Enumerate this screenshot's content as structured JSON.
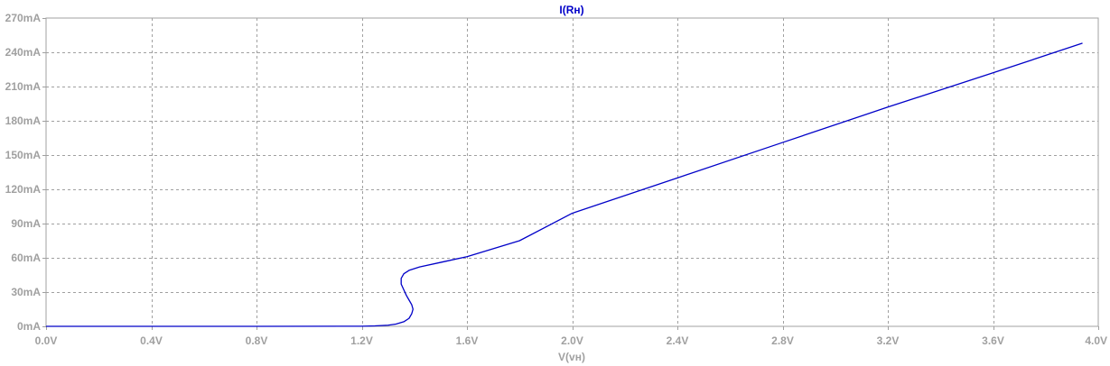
{
  "chart_data": {
    "type": "line",
    "title": "I(Rн)",
    "subtitle": "",
    "xlabel": "V(vн)",
    "ylabel": "",
    "xlim": [
      0,
      4.0
    ],
    "ylim": [
      0,
      270
    ],
    "x_unit": "V",
    "y_unit": "mA",
    "grid": true,
    "legend": "none",
    "x_ticks": [
      "0.0V",
      "0.4V",
      "0.8V",
      "1.2V",
      "1.6V",
      "2.0V",
      "2.4V",
      "2.8V",
      "3.2V",
      "3.6V",
      "4.0V"
    ],
    "y_ticks": [
      "0mA",
      "30mA",
      "60mA",
      "90mA",
      "120mA",
      "150mA",
      "180mA",
      "210mA",
      "240mA",
      "270mA"
    ],
    "x_tick_values": [
      0,
      0.4,
      0.8,
      1.2,
      1.6,
      2.0,
      2.4,
      2.8,
      3.2,
      3.6,
      4.0
    ],
    "y_tick_values": [
      0,
      30,
      60,
      90,
      120,
      150,
      180,
      210,
      240,
      270
    ],
    "series": [
      {
        "color": "#0000c8",
        "x": [
          0.0,
          0.4,
          0.8,
          1.2,
          1.25,
          1.3,
          1.33,
          1.36,
          1.38,
          1.39,
          1.395,
          1.39,
          1.38,
          1.37,
          1.36,
          1.35,
          1.35,
          1.36,
          1.38,
          1.42,
          1.5,
          1.6,
          1.8,
          2.0,
          2.4,
          2.8,
          3.2,
          3.6,
          3.94
        ],
        "y": [
          0.0,
          0.0,
          0.0,
          0.1,
          0.4,
          1.0,
          2.0,
          4.0,
          7.0,
          11.0,
          15.0,
          19.0,
          23.0,
          27.0,
          32.0,
          37.0,
          42.0,
          46.0,
          49.0,
          52.0,
          56.0,
          61.0,
          75.0,
          99.0,
          130.0,
          161.0,
          192.0,
          222.0,
          248.0
        ]
      }
    ]
  },
  "colors": {
    "background": "#ffffff",
    "frame": "#a0a0a0",
    "grid": "#a0a0a0",
    "trace": "#0000c8",
    "labels": "#a0a0a0"
  }
}
